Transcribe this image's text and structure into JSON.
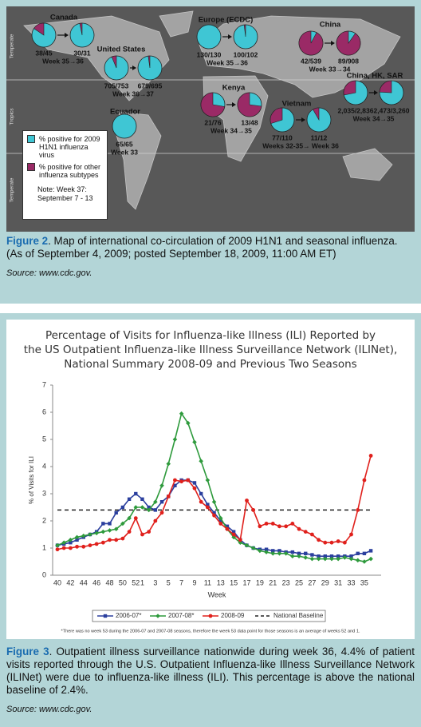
{
  "figure2": {
    "map": {
      "zones": [
        "Temperate",
        "Tropics",
        "Temperate"
      ],
      "regions": [
        {
          "name": "Canada",
          "pies": [
            {
              "positive": 38,
              "total": 45,
              "label": "38/45"
            },
            {
              "positive": 30,
              "total": 31,
              "label": "30/31"
            }
          ],
          "period": "Week 35→36"
        },
        {
          "name": "United States",
          "pies": [
            {
              "positive": 705,
              "total": 753,
              "label": "705/753"
            },
            {
              "positive": 679,
              "total": 695,
              "label": "679/695"
            }
          ],
          "period": "Week 36→37"
        },
        {
          "name": "Ecuador",
          "pies": [
            {
              "positive": 65,
              "total": 65,
              "label": "65/65"
            }
          ],
          "period": "Week 33"
        },
        {
          "name": "Europe (ECDC)",
          "pies": [
            {
              "positive": 130,
              "total": 130,
              "label": "130/130"
            },
            {
              "positive": 100,
              "total": 102,
              "label": "100/102"
            }
          ],
          "period": "Week 35→36"
        },
        {
          "name": "China",
          "pies": [
            {
              "positive": 42,
              "total": 539,
              "label": "42/539"
            },
            {
              "positive": 89,
              "total": 908,
              "label": "89/908"
            }
          ],
          "period": "Week 33→34"
        },
        {
          "name": "Kenya",
          "pies": [
            {
              "positive": 21,
              "total": 76,
              "label": "21/76"
            },
            {
              "positive": 13,
              "total": 48,
              "label": "13/48"
            }
          ],
          "period": "Week 34→35"
        },
        {
          "name": "Vietnam",
          "pies": [
            {
              "positive": 77,
              "total": 110,
              "label": "77/110"
            },
            {
              "positive": 11,
              "total": 12,
              "label": "11/12"
            }
          ],
          "period": "Weeks 32-35→ Week 36"
        },
        {
          "name": "China, HK, SAR",
          "pies": [
            {
              "positive": 2035,
              "total": 2836,
              "label": "2,035/2,836"
            },
            {
              "positive": 2473,
              "total": 3260,
              "label": "2,473/3,260"
            }
          ],
          "period": "Week 34→35"
        }
      ],
      "legend": {
        "items": [
          {
            "label": "% positive for 2009 H1N1 influenza virus",
            "color": "#3fc6d4"
          },
          {
            "label": "% positive for other influenza subtypes",
            "color": "#9a2a66"
          }
        ],
        "note": "Note: Week 37: September 7 - 13"
      }
    },
    "caption": {
      "label": "Figure 2",
      "text": ". Map of international co-circulation of 2009 H1N1 and seasonal influenza.",
      "date": "(As of September 4, 2009; posted September 18, 2009, 11:00 AM ET)",
      "source": "Source: www.cdc.gov."
    }
  },
  "chart_data": {
    "type": "line",
    "title": [
      "Percentage of Visits for Influenza-like Illness (ILI) Reported by",
      "the US Outpatient Influenza-like Illness Surveillance Network (ILINet),",
      "National Summary 2008-09 and Previous Two Seasons"
    ],
    "x_label": "Week",
    "y_label": "% of Visits for ILI",
    "categories": [
      40,
      null,
      42,
      null,
      44,
      null,
      46,
      null,
      48,
      null,
      50,
      null,
      52,
      1,
      null,
      3,
      null,
      5,
      null,
      7,
      null,
      9,
      null,
      11,
      null,
      13,
      null,
      15,
      null,
      17,
      null,
      19,
      null,
      21,
      null,
      23,
      null,
      25,
      null,
      27,
      null,
      29,
      null,
      31,
      null,
      33,
      null,
      35,
      null
    ],
    "ylim": [
      0,
      7
    ],
    "yticks": [
      0,
      1,
      2,
      3,
      4,
      5,
      6,
      7
    ],
    "series": [
      {
        "name": "2006-07*",
        "color": "#2b3f9e",
        "marker": "square",
        "values": [
          1.1,
          1.15,
          1.2,
          1.3,
          1.4,
          1.5,
          1.6,
          1.9,
          1.9,
          2.3,
          2.5,
          2.8,
          3.0,
          2.8,
          2.5,
          2.4,
          2.7,
          2.9,
          3.3,
          3.5,
          3.5,
          3.4,
          3.0,
          2.6,
          2.3,
          2.0,
          1.8,
          1.6,
          1.3,
          1.1,
          1.0,
          0.95,
          0.95,
          0.9,
          0.9,
          0.85,
          0.85,
          0.8,
          0.8,
          0.75,
          0.7,
          0.7,
          0.7,
          0.7,
          0.7,
          0.7,
          0.8,
          0.8,
          0.9
        ]
      },
      {
        "name": "2007-08*",
        "color": "#2e9a3c",
        "marker": "diamond",
        "values": [
          1.1,
          1.2,
          1.3,
          1.4,
          1.45,
          1.5,
          1.55,
          1.6,
          1.65,
          1.7,
          1.9,
          2.1,
          2.5,
          2.5,
          2.4,
          2.7,
          3.3,
          4.1,
          5.0,
          5.95,
          5.6,
          4.9,
          4.2,
          3.5,
          2.7,
          2.1,
          1.7,
          1.4,
          1.2,
          1.1,
          1.0,
          0.9,
          0.85,
          0.8,
          0.8,
          0.8,
          0.7,
          0.7,
          0.65,
          0.6,
          0.6,
          0.6,
          0.6,
          0.6,
          0.65,
          0.6,
          0.55,
          0.5,
          0.6
        ]
      },
      {
        "name": "2008-09",
        "color": "#e0201c",
        "marker": "circle",
        "values": [
          0.95,
          1.0,
          1.0,
          1.05,
          1.05,
          1.1,
          1.15,
          1.2,
          1.3,
          1.3,
          1.35,
          1.6,
          2.1,
          1.5,
          1.6,
          2.0,
          2.3,
          2.9,
          3.5,
          3.45,
          3.5,
          3.2,
          2.7,
          2.5,
          2.2,
          1.9,
          1.7,
          1.5,
          1.3,
          2.75,
          2.4,
          1.8,
          1.9,
          1.9,
          1.8,
          1.8,
          1.9,
          1.7,
          1.6,
          1.5,
          1.3,
          1.2,
          1.2,
          1.25,
          1.2,
          1.5,
          2.4,
          3.5,
          4.4
        ]
      }
    ],
    "baseline": {
      "name": "National Baseline",
      "value": 2.4,
      "color": "#222222"
    },
    "footnote": "*There was no week 53 during the 2006-07 and 2007-08 seasons, therefore the week 53 data point for those seasons is an average of weeks 52 and 1."
  },
  "figure3": {
    "caption": {
      "label": "Figure 3",
      "text": ". Outpatient illness surveillance nationwide during week 36, 4.4% of patient visits reported through the U.S. Outpatient Influenza-like Illness Surveillance Network (ILINet) were due to influenza-like illness (ILI). This percentage is above the national baseline of 2.4%.",
      "source": "Source: www.cdc.gov."
    }
  }
}
